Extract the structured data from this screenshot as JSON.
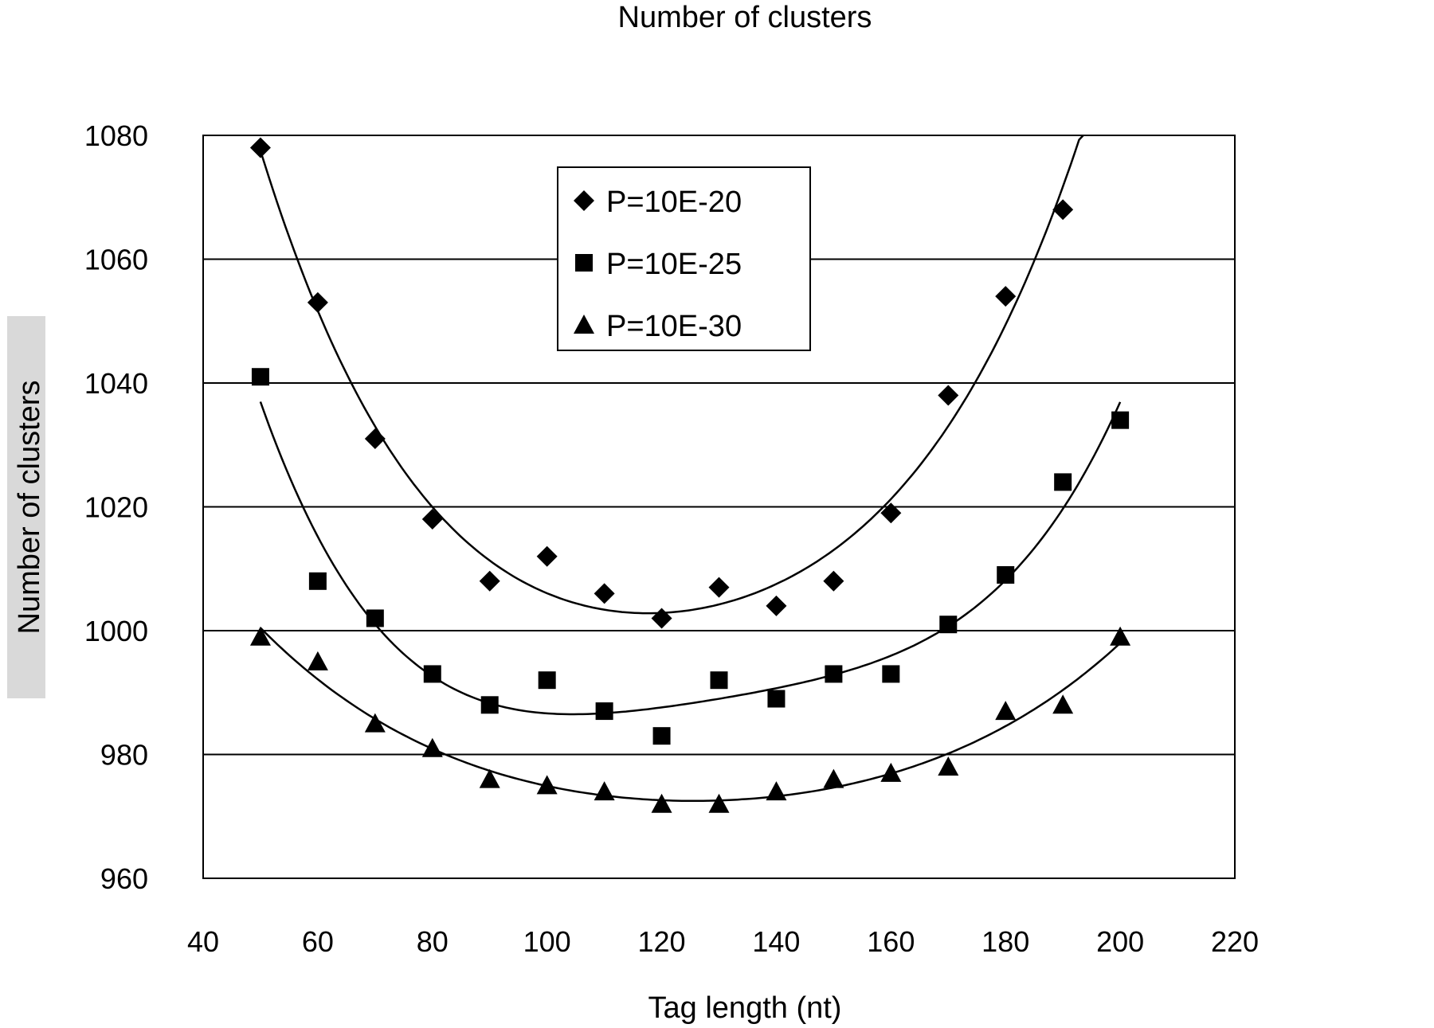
{
  "chart_data": {
    "type": "scatter",
    "title": "Number of clusters",
    "xlabel": "Tag length (nt)",
    "ylabel": "Number of clusters",
    "xlim": [
      40,
      220
    ],
    "ylim": [
      960,
      1080
    ],
    "xticks": [
      40,
      60,
      80,
      100,
      120,
      140,
      160,
      180,
      200,
      220
    ],
    "yticks": [
      960,
      980,
      1000,
      1020,
      1040,
      1060,
      1080
    ],
    "grid": "horizontal",
    "legend_position": "top-center",
    "x": [
      50,
      60,
      70,
      80,
      90,
      100,
      110,
      120,
      130,
      140,
      150,
      160,
      170,
      180,
      190,
      200
    ],
    "series": [
      {
        "name": "P=10E-20",
        "marker": "diamond",
        "color": "#000000",
        "values": [
          1078,
          1053,
          1031,
          1018,
          1008,
          1012,
          1006,
          1002,
          1007,
          1004,
          1008,
          1019,
          1038,
          1054,
          1068,
          null
        ]
      },
      {
        "name": "P=10E-25",
        "marker": "square",
        "color": "#000000",
        "values": [
          1041,
          1008,
          1002,
          993,
          988,
          992,
          987,
          983,
          992,
          989,
          993,
          993,
          1001,
          1009,
          1024,
          1034
        ]
      },
      {
        "name": "P=10E-30",
        "marker": "triangle",
        "color": "#000000",
        "values": [
          999,
          995,
          985,
          981,
          976,
          975,
          974,
          972,
          972,
          974,
          976,
          977,
          978,
          987,
          988,
          999
        ]
      }
    ]
  }
}
